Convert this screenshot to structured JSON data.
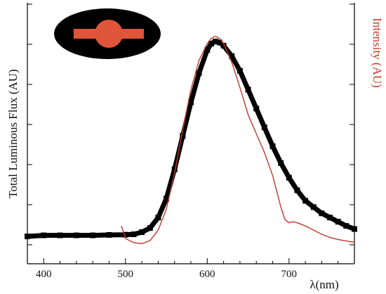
{
  "chart_data": {
    "type": "line",
    "title": "",
    "xlabel": "λ(nm)",
    "ylabel_left": "Total Luminous Flux (AU)",
    "ylabel_right": "Intensity (AU)",
    "xlim": [
      380,
      780
    ],
    "ylim": [
      0,
      1.05
    ],
    "x_ticks": [
      400,
      500,
      600,
      700
    ],
    "x_tick_labels": [
      "400",
      "500",
      "600",
      "700"
    ],
    "grid": false,
    "legend": "none",
    "colors": {
      "flux": "#000000",
      "intensity": "#c0392b",
      "inset_bg": "#000000",
      "inset_sample": "#e0553a"
    },
    "inset": {
      "kind": "photo",
      "description_icon": "orange-emitting-sample-photo"
    },
    "series": [
      {
        "key": "flux",
        "axis": "left",
        "style": "thick-markers",
        "x": [
          380,
          400,
          420,
          440,
          460,
          480,
          500,
          510,
          520,
          530,
          540,
          550,
          560,
          570,
          580,
          590,
          600,
          605,
          610,
          615,
          620,
          630,
          640,
          650,
          660,
          670,
          680,
          690,
          700,
          710,
          720,
          730,
          740,
          750,
          760,
          770,
          780
        ],
        "y": [
          0.04,
          0.045,
          0.045,
          0.045,
          0.045,
          0.047,
          0.048,
          0.05,
          0.06,
          0.08,
          0.13,
          0.22,
          0.36,
          0.52,
          0.68,
          0.82,
          0.93,
          0.96,
          0.97,
          0.965,
          0.95,
          0.9,
          0.83,
          0.74,
          0.65,
          0.56,
          0.47,
          0.39,
          0.32,
          0.26,
          0.21,
          0.18,
          0.15,
          0.13,
          0.11,
          0.09,
          0.075
        ]
      },
      {
        "key": "intensity",
        "axis": "right",
        "style": "thin-line",
        "x": [
          495,
          500,
          510,
          520,
          530,
          540,
          550,
          560,
          570,
          580,
          590,
          600,
          605,
          610,
          615,
          620,
          630,
          640,
          650,
          660,
          670,
          680,
          690,
          695,
          700,
          705,
          710,
          720,
          730,
          740,
          750,
          760,
          770,
          780
        ],
        "y": [
          0.09,
          0.03,
          0.01,
          0.005,
          0.02,
          0.07,
          0.17,
          0.34,
          0.55,
          0.74,
          0.88,
          0.96,
          0.985,
          0.995,
          0.985,
          0.96,
          0.87,
          0.75,
          0.62,
          0.53,
          0.44,
          0.33,
          0.18,
          0.12,
          0.105,
          0.11,
          0.105,
          0.09,
          0.07,
          0.05,
          0.035,
          0.025,
          0.018,
          0.012
        ]
      }
    ]
  }
}
